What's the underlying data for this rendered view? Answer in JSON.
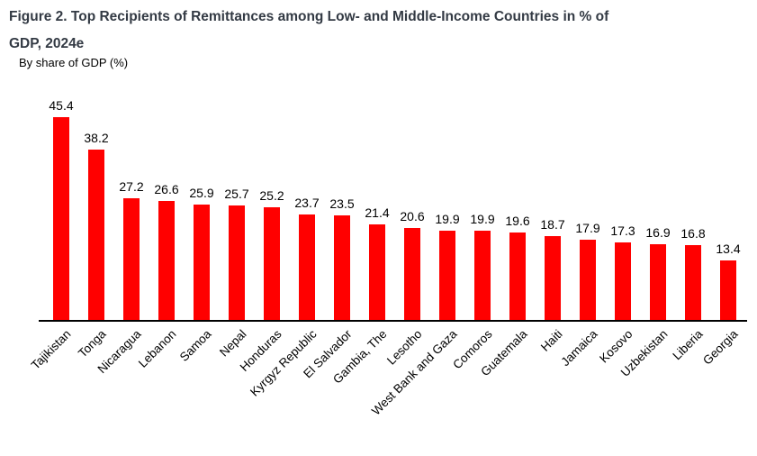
{
  "header": {
    "title_line1": "Figure 2. Top Recipients of Remittances among Low- and Middle-Income Countries in % of",
    "title_line2": "GDP, 2024e",
    "title_color": "#333a44"
  },
  "chart_data": {
    "type": "bar",
    "title": "Figure 2. Top Recipients of Remittances among Low- and Middle-Income Countries in % of GDP, 2024e",
    "subtitle": "By share of GDP (%)",
    "categories": [
      "Tajikistan",
      "Tonga",
      "Nicaragua",
      "Lebanon",
      "Samoa",
      "Nepal",
      "Honduras",
      "Kyrgyz Republic",
      "El Salvador",
      "Gambia, The",
      "Lesotho",
      "West Bank and Gaza",
      "Comoros",
      "Guatemala",
      "Haiti",
      "Jamaica",
      "Kosovo",
      "Uzbekistan",
      "Liberia",
      "Georgia"
    ],
    "values": [
      45.4,
      38.2,
      27.2,
      26.6,
      25.9,
      25.7,
      25.2,
      23.7,
      23.5,
      21.4,
      20.6,
      19.9,
      19.9,
      19.6,
      18.7,
      17.9,
      17.3,
      16.9,
      16.8,
      13.4
    ],
    "xlabel": "",
    "ylabel": "By share of GDP (%)",
    "ylim": [
      0,
      48
    ],
    "bar_color": "#ff0000",
    "axis_color": "#000000",
    "value_label_color": "#000000",
    "grid": false,
    "legend": "none",
    "value_labels_shown": true,
    "x_tick_rotation_deg": 45
  }
}
